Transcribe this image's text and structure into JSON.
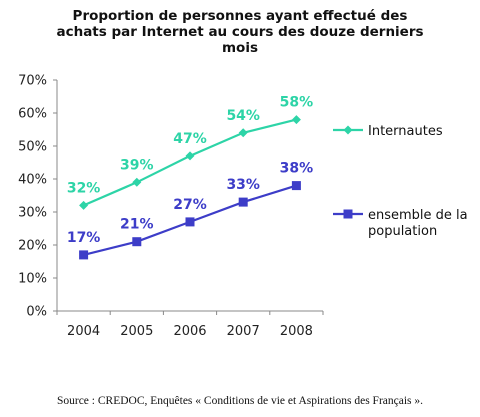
{
  "title_lines": [
    "Proportion de personnes ayant effectué des",
    "achats par Internet au cours des douze derniers",
    "mois"
  ],
  "source": "Source : CREDOC, Enquêtes « Conditions de vie et Aspirations des Français ».",
  "colors": {
    "internautes": "#2DD4A7",
    "population": "#3D3DC8",
    "axis": "#888888"
  },
  "chart_data": {
    "type": "line",
    "categories": [
      "2004",
      "2005",
      "2006",
      "2007",
      "2008"
    ],
    "ylim": [
      0,
      70
    ],
    "yticks": [
      "0%",
      "10%",
      "20%",
      "30%",
      "40%",
      "50%",
      "60%",
      "70%"
    ],
    "grid": false,
    "legend": "right",
    "series": [
      {
        "name": "Internautes",
        "values": [
          32,
          39,
          47,
          54,
          58
        ],
        "labels": [
          "32%",
          "39%",
          "47%",
          "54%",
          "58%"
        ],
        "marker": "diamond"
      },
      {
        "name": "ensemble de la population",
        "values": [
          17,
          21,
          27,
          33,
          38
        ],
        "labels": [
          "17%",
          "21%",
          "27%",
          "33%",
          "38%"
        ],
        "marker": "square"
      }
    ]
  }
}
